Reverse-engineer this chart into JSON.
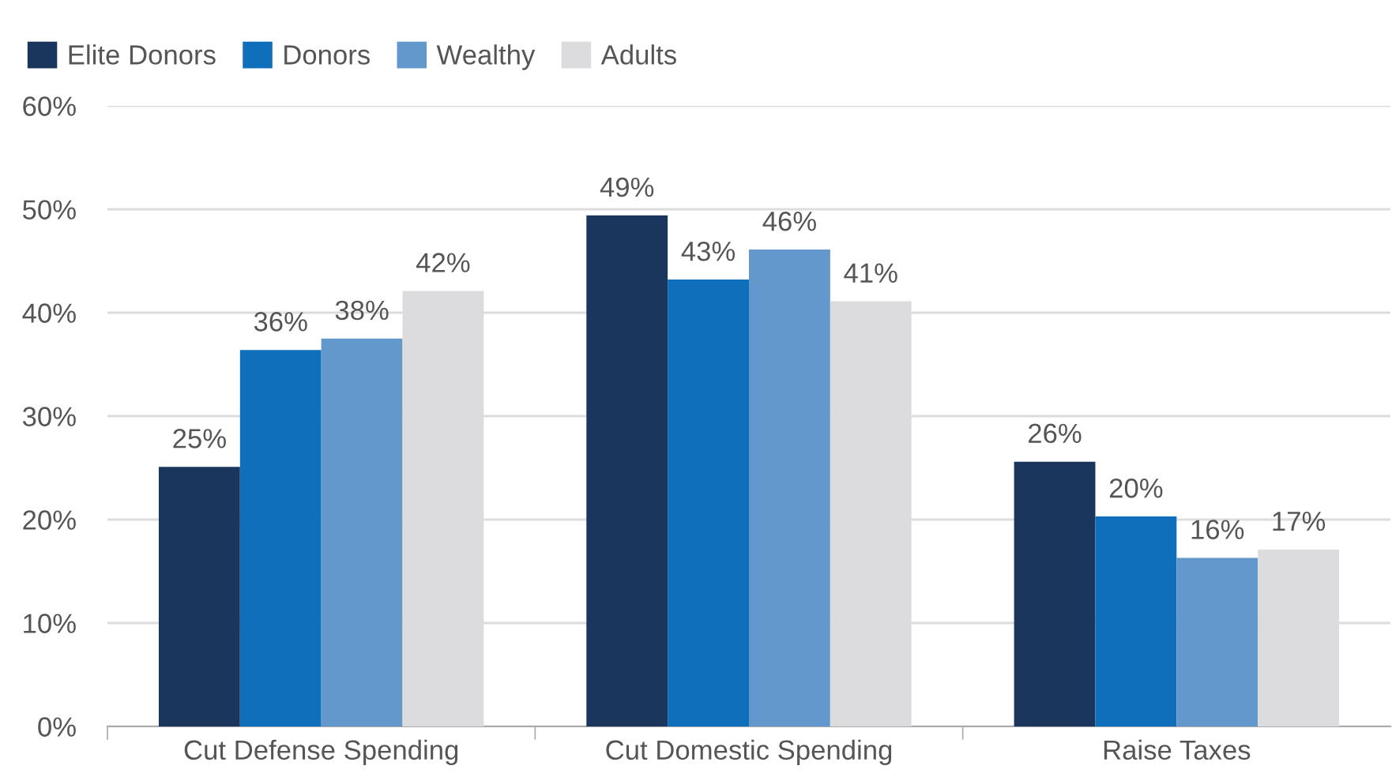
{
  "chart_data": {
    "type": "bar",
    "categories": [
      "Cut Defense Spending",
      "Cut Domestic Spending",
      "Raise Taxes"
    ],
    "series": [
      {
        "name": "Elite Donors",
        "color": "#1b365d",
        "values": [
          25.1,
          49.4,
          25.6
        ],
        "value_labels": [
          "25%",
          "49%",
          "26%"
        ]
      },
      {
        "name": "Donors",
        "color": "#0f6fba",
        "values": [
          36.4,
          43.2,
          20.3
        ],
        "value_labels": [
          "36%",
          "43%",
          "20%"
        ]
      },
      {
        "name": "Wealthy",
        "color": "#6398cd",
        "values": [
          37.5,
          46.1,
          16.3
        ],
        "value_labels": [
          "38%",
          "46%",
          "16%"
        ]
      },
      {
        "name": "Adults",
        "color": "#dcdcde",
        "values": [
          42.1,
          41.1,
          17.1
        ],
        "value_labels": [
          "42%",
          "41%",
          "17%"
        ]
      }
    ],
    "ylim": [
      0,
      60
    ],
    "yticks": [
      {
        "value": 0,
        "label": "0%"
      },
      {
        "value": 10,
        "label": "10%"
      },
      {
        "value": 20,
        "label": "20%"
      },
      {
        "value": 30,
        "label": "30%"
      },
      {
        "value": 40,
        "label": "40%"
      },
      {
        "value": 50,
        "label": "50%"
      },
      {
        "value": 60,
        "label": "60%"
      }
    ],
    "grid": "y",
    "legend": "top left"
  }
}
